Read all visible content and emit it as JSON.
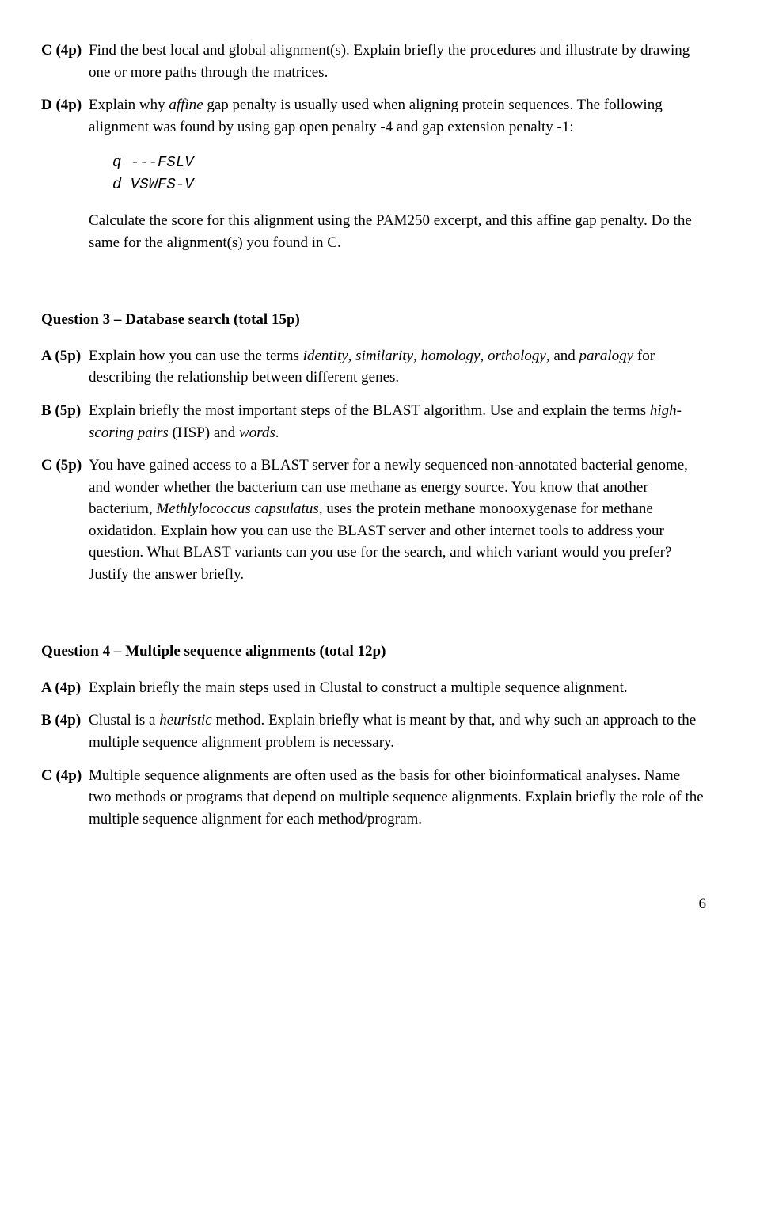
{
  "q2c": {
    "label": "C (4p)",
    "text_a": "Find the best local and global alignment(s). Explain briefly the procedures and illustrate by drawing one or more paths through the matrices."
  },
  "q2d": {
    "label": "D (4p)",
    "text_a": "Explain why ",
    "italic_a": "affine",
    "text_b": " gap penalty is usually used when aligning protein sequences. The following alignment was found by using gap open penalty -4 and gap extension penalty -1:",
    "code_line1": "q ---FSLV",
    "code_line2": "d VSWFS-V",
    "text_c": "Calculate the score for this alignment using the PAM250 excerpt, and this affine gap penalty. Do the same for the alignment(s) you found in C."
  },
  "q3": {
    "heading": "Question 3 – Database search (total 15p)",
    "a": {
      "label": "A (5p)",
      "t1": "Explain how you can use the terms ",
      "i1": "identity",
      "t2": ", ",
      "i2": "similarity",
      "t3": ", ",
      "i3": "homology",
      "t4": ", ",
      "i4": "orthology",
      "t5": ", and ",
      "i5": "paralogy",
      "t6": " for describing the relationship between different genes."
    },
    "b": {
      "label": "B (5p)",
      "t1": "Explain briefly the most important steps of the BLAST algorithm. Use and explain the terms ",
      "i1": "high-scoring pairs",
      "t2": " (HSP) and ",
      "i2": "words",
      "t3": "."
    },
    "c": {
      "label": "C (5p)",
      "t1": "You have gained access to a BLAST server for a newly sequenced non-annotated bacterial genome, and wonder whether the bacterium can use methane as energy source. You know that another bacterium, ",
      "i1": "Methlylococcus capsulatus",
      "t2": ", uses the protein methane monooxygenase for methane oxidatidon. Explain how you can use the BLAST server and other internet tools to address your question. What BLAST variants can you use for the search, and which variant would you prefer? Justify the answer briefly."
    }
  },
  "q4": {
    "heading": "Question 4 – Multiple sequence alignments (total 12p)",
    "a": {
      "label": "A (4p)",
      "t1": "Explain briefly the main steps used in Clustal to construct a multiple sequence alignment."
    },
    "b": {
      "label": "B (4p)",
      "t1": "Clustal is a ",
      "i1": "heuristic",
      "t2": " method. Explain briefly what is meant by that, and why such an approach to the multiple sequence alignment problem is necessary."
    },
    "c": {
      "label": "C (4p)",
      "t1": "Multiple sequence alignments are often used as the basis for other bioinformatical analyses. Name two methods or programs that depend on multiple sequence alignments. Explain briefly the role of the multiple sequence alignment for each method/program."
    }
  },
  "pagenum": "6"
}
